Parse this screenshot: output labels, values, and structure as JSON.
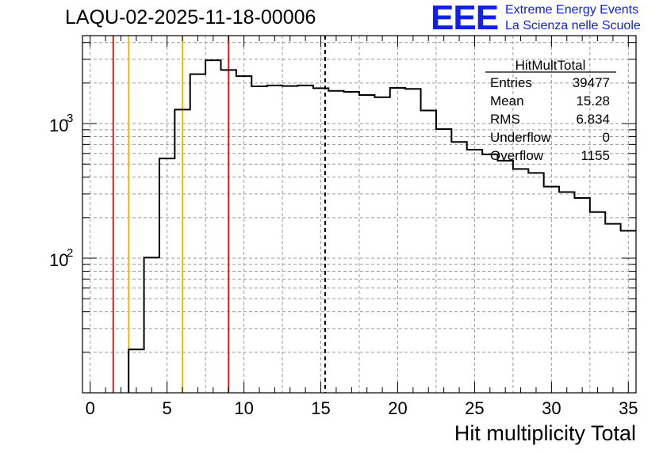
{
  "chart_data": {
    "type": "bar",
    "title": "LAQU-02-2025-11-18-00006",
    "xlabel": "Hit multiplicity Total",
    "ylabel": "",
    "yscale": "log",
    "xlim": [
      -0.5,
      35.5
    ],
    "ylim": [
      10,
      4500
    ],
    "bin_width": 1,
    "x_ticks": [
      "0",
      "5",
      "10",
      "15",
      "20",
      "25",
      "30",
      "35"
    ],
    "y_ticks": [
      {
        "base": "10",
        "exp": "3",
        "value": 1000
      },
      {
        "base": "10",
        "exp": "2",
        "value": 100
      }
    ],
    "bins": [
      {
        "x": 0,
        "value": 0
      },
      {
        "x": 1,
        "value": 0
      },
      {
        "x": 2,
        "value": 0
      },
      {
        "x": 3,
        "value": 21
      },
      {
        "x": 4,
        "value": 101
      },
      {
        "x": 5,
        "value": 550
      },
      {
        "x": 6,
        "value": 1270
      },
      {
        "x": 7,
        "value": 2330
      },
      {
        "x": 8,
        "value": 2950
      },
      {
        "x": 9,
        "value": 2500
      },
      {
        "x": 10,
        "value": 2250
      },
      {
        "x": 11,
        "value": 1890
      },
      {
        "x": 12,
        "value": 1920
      },
      {
        "x": 13,
        "value": 1900
      },
      {
        "x": 14,
        "value": 1920
      },
      {
        "x": 15,
        "value": 1830
      },
      {
        "x": 16,
        "value": 1750
      },
      {
        "x": 17,
        "value": 1720
      },
      {
        "x": 18,
        "value": 1630
      },
      {
        "x": 19,
        "value": 1570
      },
      {
        "x": 20,
        "value": 1840
      },
      {
        "x": 21,
        "value": 1810
      },
      {
        "x": 22,
        "value": 1250
      },
      {
        "x": 23,
        "value": 910
      },
      {
        "x": 24,
        "value": 730
      },
      {
        "x": 25,
        "value": 640
      },
      {
        "x": 26,
        "value": 590
      },
      {
        "x": 27,
        "value": 530
      },
      {
        "x": 28,
        "value": 460
      },
      {
        "x": 29,
        "value": 430
      },
      {
        "x": 30,
        "value": 340
      },
      {
        "x": 31,
        "value": 310
      },
      {
        "x": 32,
        "value": 280
      },
      {
        "x": 33,
        "value": 220
      },
      {
        "x": 34,
        "value": 180
      },
      {
        "x": 35,
        "value": 160
      }
    ],
    "vertical_lines": [
      {
        "x": 1.5,
        "color": "#e41a1c",
        "style": "solid"
      },
      {
        "x": 2.5,
        "color": "#f0c000",
        "style": "solid"
      },
      {
        "x": 6.0,
        "color": "#f0c000",
        "style": "solid"
      },
      {
        "x": 9.0,
        "color": "#e41a1c",
        "style": "solid"
      },
      {
        "x": 15.28,
        "color": "#000000",
        "style": "dashed"
      }
    ],
    "grid": true,
    "stats": {
      "name": "HitMultTotal",
      "rows": [
        {
          "label": "Entries",
          "value": "39477"
        },
        {
          "label": "Mean",
          "value": "15.28"
        },
        {
          "label": "RMS",
          "value": "6.834"
        },
        {
          "label": "Underflow",
          "value": "0"
        },
        {
          "label": "Overflow",
          "value": "1155"
        }
      ]
    }
  },
  "logo": {
    "mark": "EEE",
    "line1": "Extreme Energy Events",
    "line2": "La Scienza nelle Scuole",
    "color": "#1020e8"
  }
}
